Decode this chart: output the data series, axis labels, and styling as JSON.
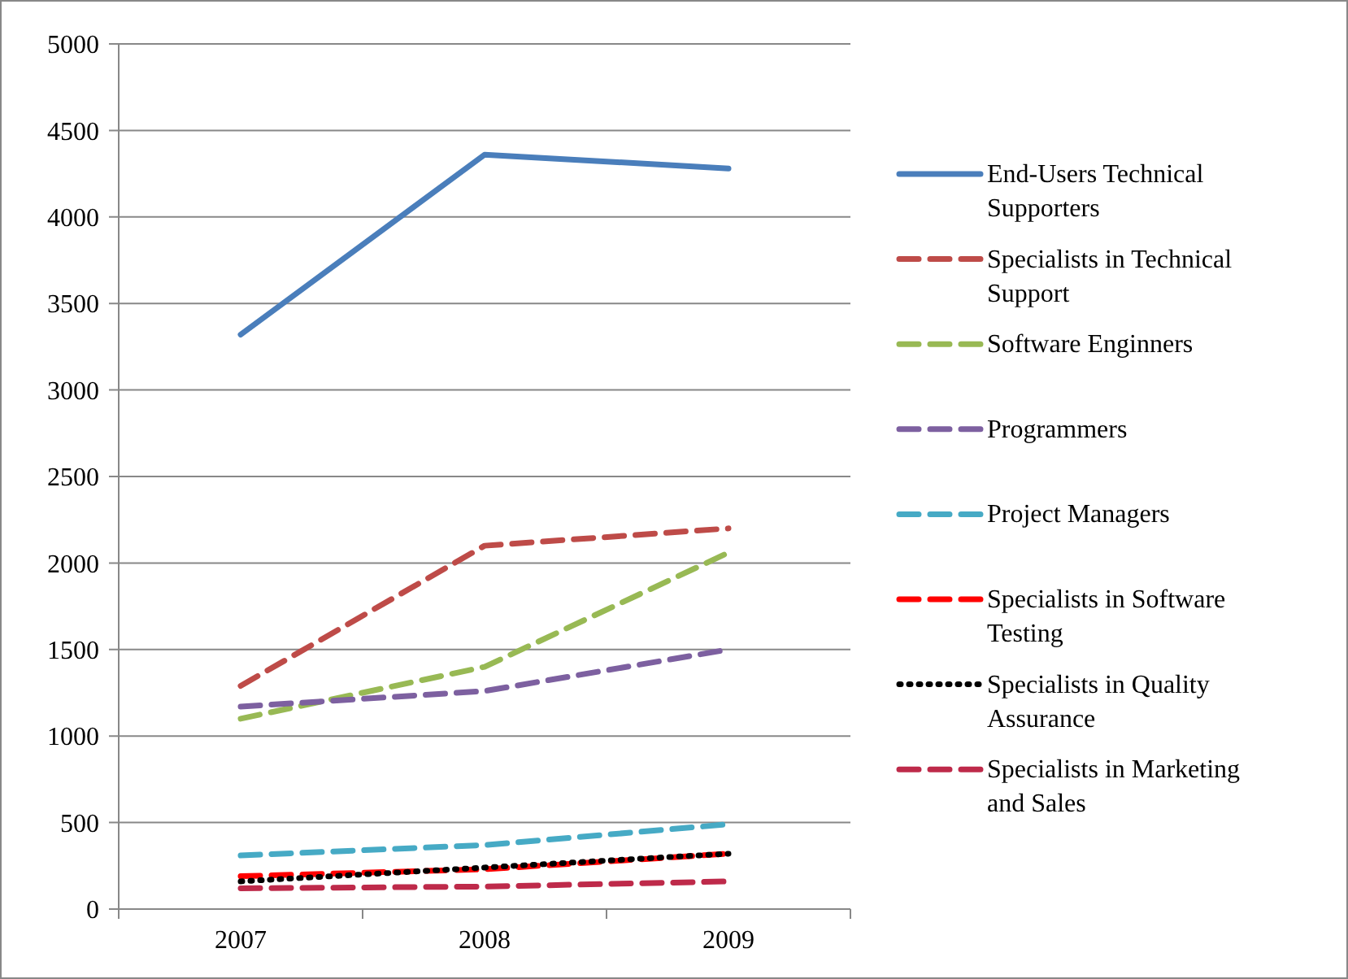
{
  "chart_data": {
    "type": "line",
    "categories": [
      "2007",
      "2008",
      "2009"
    ],
    "ylim": [
      0,
      5000
    ],
    "yticks": [
      0,
      500,
      1000,
      1500,
      2000,
      2500,
      3000,
      3500,
      4000,
      4500,
      5000
    ],
    "grid": "y",
    "legend": "right",
    "series": [
      {
        "name": "End-Users Technical Supporters",
        "color": "#4a7ebb",
        "line_style": "solid",
        "values": [
          3320,
          4360,
          4280
        ]
      },
      {
        "name": "Specialists in Technical Support",
        "color": "#be4b48",
        "line_style": "dashed",
        "values": [
          1290,
          2100,
          2200
        ]
      },
      {
        "name": "Software Enginners",
        "color": "#98b954",
        "line_style": "dashed",
        "values": [
          1100,
          1400,
          2060
        ]
      },
      {
        "name": "Programmers",
        "color": "#7d60a0",
        "line_style": "dashed",
        "values": [
          1170,
          1260,
          1500
        ]
      },
      {
        "name": "Project Managers",
        "color": "#46aac5",
        "line_style": "dashed",
        "values": [
          310,
          370,
          490
        ]
      },
      {
        "name": "Specialists in Software Testing",
        "color": "#ff0000",
        "line_style": "dashed",
        "values": [
          190,
          230,
          320
        ]
      },
      {
        "name": "Specialists in Quality Assurance",
        "color": "#000000",
        "line_style": "dotted",
        "values": [
          160,
          240,
          320
        ]
      },
      {
        "name": "Specialists in Marketing and Sales",
        "color": "#be2a4a",
        "line_style": "dashed",
        "values": [
          120,
          130,
          160
        ]
      }
    ]
  }
}
